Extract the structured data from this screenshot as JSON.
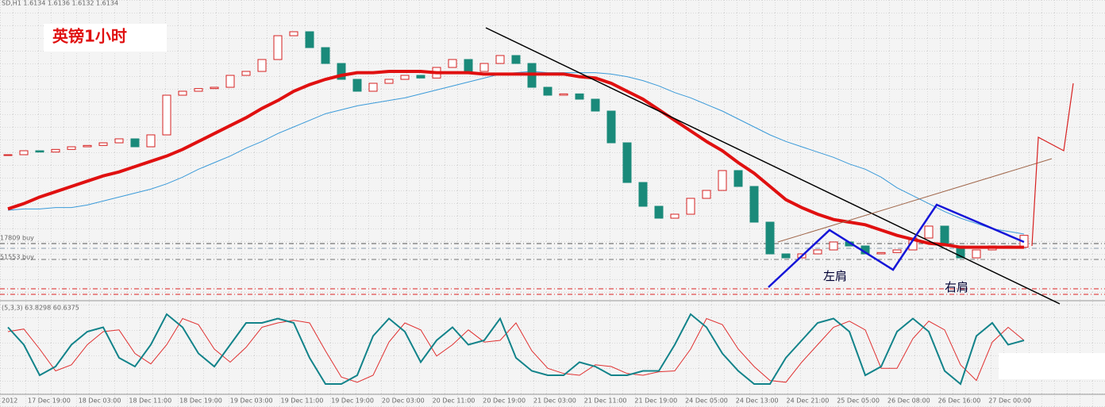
{
  "chart_data": {
    "type": "candlestick",
    "title": "英镑1小时",
    "header": "SD,H1  1.6134 1.6136 1.6132 1.6134",
    "level_labels": [
      "17809 buy",
      "51553 buy"
    ],
    "annotations": [
      "左肩",
      "右肩"
    ],
    "x_tick_labels": [
      "2012",
      "17 Dec 19:00",
      "18 Dec 03:00",
      "18 Dec 11:00",
      "18 Dec 19:00",
      "19 Dec 03:00",
      "19 Dec 11:00",
      "19 Dec 19:00",
      "20 Dec 03:00",
      "20 Dec 11:00",
      "20 Dec 19:00",
      "21 Dec 03:00",
      "21 Dec 11:00",
      "21 Dec 19:00",
      "24 Dec 05:00",
      "24 Dec 13:00",
      "24 Dec 21:00",
      "25 Dec 05:00",
      "26 Dec 08:00",
      "26 Dec 16:00",
      "27 Dec 00:00"
    ],
    "price": {
      "ylim": [
        1.609,
        1.63
      ],
      "up_color": "#d62020",
      "down_color": "#1a8a7a",
      "close": [
        1.6195,
        1.6198,
        1.6197,
        1.6199,
        1.6201,
        1.6202,
        1.6204,
        1.6207,
        1.6201,
        1.621,
        1.624,
        1.6243,
        1.6245,
        1.6246,
        1.6255,
        1.6258,
        1.6267,
        1.6285,
        1.6288,
        1.6276,
        1.6264,
        1.6252,
        1.6243,
        1.6249,
        1.6252,
        1.6255,
        1.6253,
        1.6261,
        1.6267,
        1.6258,
        1.6264,
        1.627,
        1.6264,
        1.6246,
        1.624,
        1.6241,
        1.6237,
        1.6228,
        1.6204,
        1.6174,
        1.6156,
        1.6147,
        1.615,
        1.6162,
        1.6168,
        1.6183,
        1.6171,
        1.6144,
        1.612,
        1.6117,
        1.612,
        1.6123,
        1.6129,
        1.6126,
        1.612,
        1.6121,
        1.6123,
        1.6132,
        1.6141,
        1.6126,
        1.6117,
        1.6123,
        1.6126,
        1.6125,
        1.6134
      ],
      "lines": [
        {
          "color": "#3a9ad9",
          "width": 1,
          "values": [
            1.6153,
            1.6154,
            1.6154,
            1.6155,
            1.6155,
            1.6157,
            1.616,
            1.6163,
            1.6166,
            1.6169,
            1.6173,
            1.6178,
            1.6184,
            1.6189,
            1.6194,
            1.62,
            1.6205,
            1.6211,
            1.6216,
            1.6221,
            1.6226,
            1.6229,
            1.6232,
            1.6234,
            1.6236,
            1.6238,
            1.6241,
            1.6244,
            1.6247,
            1.625,
            1.6253,
            1.6256,
            1.6257,
            1.6258,
            1.6257,
            1.6257,
            1.6257,
            1.6257,
            1.6256,
            1.6254,
            1.6251,
            1.6247,
            1.6242,
            1.6238,
            1.6233,
            1.6228,
            1.6222,
            1.6216,
            1.621,
            1.6205,
            1.6201,
            1.6197,
            1.6193,
            1.6188,
            1.6184,
            1.6178,
            1.617,
            1.6164,
            1.6158,
            1.6152,
            1.6147,
            1.6143,
            1.6139,
            1.6137,
            1.6135
          ]
        },
        {
          "color": "#e01010",
          "width": 4,
          "values": [
            1.6154,
            1.6158,
            1.6163,
            1.6167,
            1.6171,
            1.6175,
            1.6179,
            1.6182,
            1.6186,
            1.619,
            1.6194,
            1.6199,
            1.6205,
            1.6211,
            1.6217,
            1.6223,
            1.623,
            1.6236,
            1.6243,
            1.6248,
            1.6252,
            1.6255,
            1.6257,
            1.6257,
            1.6258,
            1.6258,
            1.6258,
            1.6257,
            1.6257,
            1.6257,
            1.6256,
            1.6256,
            1.6256,
            1.6256,
            1.6256,
            1.6256,
            1.6254,
            1.6253,
            1.6249,
            1.6243,
            1.6237,
            1.6229,
            1.6221,
            1.6213,
            1.6205,
            1.6198,
            1.6189,
            1.6181,
            1.6171,
            1.6161,
            1.6155,
            1.615,
            1.6146,
            1.6144,
            1.6142,
            1.6138,
            1.6134,
            1.6131,
            1.6128,
            1.6127,
            1.6125,
            1.6125,
            1.6125,
            1.6125,
            1.6125
          ]
        }
      ]
    },
    "oscillator": {
      "label": "(5,3,3) 63.8298 60.6375",
      "ylim": [
        0,
        100
      ],
      "lines": [
        {
          "color": "#e03030",
          "width": 1,
          "values": [
            70,
            73,
            50,
            25,
            32,
            55,
            70,
            72,
            45,
            33,
            55,
            85,
            78,
            50,
            35,
            52,
            75,
            80,
            83,
            80,
            48,
            18,
            12,
            20,
            58,
            80,
            72,
            42,
            55,
            72,
            58,
            60,
            80,
            48,
            28,
            22,
            20,
            32,
            30,
            22,
            20,
            24,
            25,
            50,
            85,
            78,
            50,
            30,
            14,
            12,
            35,
            55,
            75,
            82,
            72,
            28,
            28,
            62,
            82,
            72,
            32,
            14,
            58,
            75,
            60
          ]
        },
        {
          "color": "#12838a",
          "width": 2,
          "values": [
            75,
            55,
            20,
            30,
            55,
            70,
            75,
            40,
            30,
            55,
            90,
            75,
            45,
            30,
            55,
            80,
            80,
            85,
            80,
            40,
            10,
            10,
            20,
            65,
            85,
            70,
            35,
            60,
            75,
            55,
            60,
            85,
            40,
            25,
            20,
            20,
            35,
            30,
            20,
            20,
            25,
            25,
            55,
            90,
            75,
            45,
            25,
            10,
            10,
            40,
            60,
            80,
            85,
            70,
            20,
            30,
            70,
            85,
            70,
            25,
            10,
            65,
            80,
            55,
            60
          ]
        }
      ]
    }
  }
}
